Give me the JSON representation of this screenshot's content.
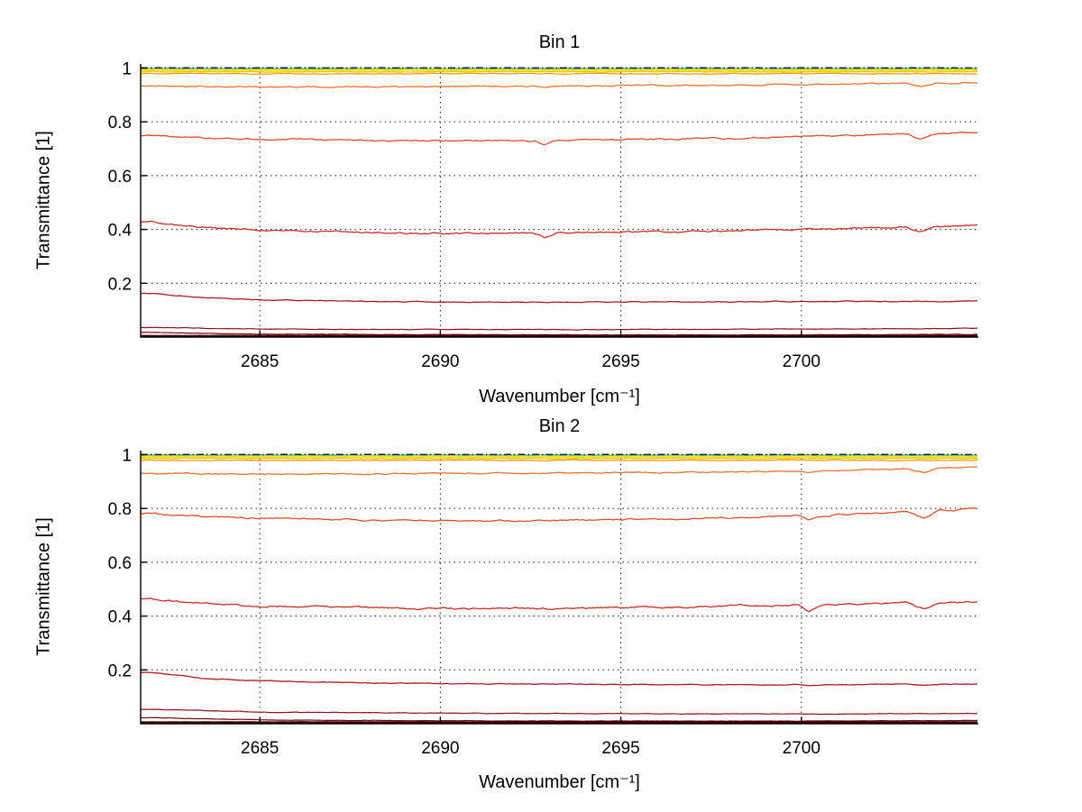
{
  "figure": {
    "background": "#ffffff",
    "text_color": "#000000",
    "grid_color": "#1a1a1a"
  },
  "chart_data": [
    {
      "type": "line",
      "title": "Bin 1",
      "xlabel": "Wavenumber [cm⁻¹]",
      "ylabel": "Transmittance [1]",
      "xlim": [
        2681.7,
        2704.9
      ],
      "ylim": [
        0,
        1.015
      ],
      "xticks": [
        2685,
        2690,
        2695,
        2700
      ],
      "yticks": [
        0.2,
        0.4,
        0.6,
        0.8,
        1
      ],
      "grid": true,
      "legend": "none",
      "series": [
        {
          "name": "line-T0.998-cyan",
          "color": "#4bd9ce",
          "width": 1.3,
          "noise": 0.001,
          "x": [
            2682,
            2705
          ],
          "y": [
            0.9985,
            0.9985
          ]
        },
        {
          "name": "line-T0.996-green",
          "color": "#7ed03e",
          "width": 1.3,
          "noise": 0.001,
          "x": [
            2682,
            2705
          ],
          "y": [
            0.996,
            0.996
          ]
        },
        {
          "name": "line-T0.991-yellow",
          "color": "#f2e814",
          "width": 2.3,
          "noise": 0.0012,
          "x": [
            2682,
            2705
          ],
          "y": [
            0.9915,
            0.9915
          ]
        },
        {
          "name": "line-T0.986-gold",
          "color": "#f5c11a",
          "width": 1.3,
          "noise": 0.0012,
          "x": [
            2682,
            2705
          ],
          "y": [
            0.986,
            0.986
          ]
        },
        {
          "name": "line-T0.979-orange",
          "color": "#f39a22",
          "width": 1.3,
          "noise": 0.0015,
          "x": [
            2682,
            2705
          ],
          "y": [
            0.979,
            0.979
          ]
        },
        {
          "name": "line-T1.000-reference-dashdot",
          "color": "#14147e",
          "width": 1.5,
          "dash": "8 3 1.5 3",
          "noise": 0.0003,
          "x": [
            2682,
            2705
          ],
          "y": [
            1.0005,
            1.0005
          ]
        },
        {
          "name": "line-T0.93",
          "color": "#e8732b",
          "width": 1.3,
          "noise": 0.0022,
          "x": [
            2682,
            2683.5,
            2685,
            2688,
            2690,
            2692.6,
            2692.9,
            2693.2,
            2695,
            2698,
            2700,
            2702.9,
            2703.3,
            2703.7,
            2704.9
          ],
          "y": [
            0.933,
            0.931,
            0.93,
            0.93,
            0.932,
            0.931,
            0.924,
            0.932,
            0.934,
            0.936,
            0.938,
            0.944,
            0.933,
            0.944,
            0.946
          ]
        },
        {
          "name": "line-T0.75",
          "color": "#de4e2b",
          "width": 1.3,
          "noise": 0.0028,
          "x": [
            2682,
            2683.5,
            2685,
            2688,
            2690,
            2692.6,
            2692.9,
            2693.2,
            2695,
            2698,
            2700,
            2702.9,
            2703.3,
            2703.7,
            2704.9
          ],
          "y": [
            0.748,
            0.74,
            0.735,
            0.73,
            0.729,
            0.729,
            0.716,
            0.731,
            0.733,
            0.738,
            0.746,
            0.755,
            0.737,
            0.756,
            0.761
          ]
        },
        {
          "name": "line-T0.40",
          "color": "#cb2c24",
          "width": 1.3,
          "noise": 0.003,
          "x": [
            2682,
            2683.5,
            2685,
            2688,
            2690,
            2692.6,
            2692.9,
            2693.2,
            2695,
            2698,
            2700,
            2702.9,
            2703.3,
            2703.7,
            2704.9
          ],
          "y": [
            0.428,
            0.408,
            0.398,
            0.389,
            0.386,
            0.387,
            0.37,
            0.388,
            0.39,
            0.394,
            0.4,
            0.409,
            0.391,
            0.409,
            0.416
          ]
        },
        {
          "name": "line-T0.14",
          "color": "#af1a1f",
          "width": 1.3,
          "noise": 0.0016,
          "x": [
            2682,
            2683.5,
            2685,
            2688,
            2690,
            2692.6,
            2692.9,
            2693.2,
            2695,
            2698,
            2700,
            2702.9,
            2703.3,
            2703.7,
            2704.9
          ],
          "y": [
            0.162,
            0.146,
            0.138,
            0.132,
            0.13,
            0.13,
            0.128,
            0.13,
            0.13,
            0.131,
            0.132,
            0.133,
            0.131,
            0.133,
            0.135
          ]
        },
        {
          "name": "line-T0.03",
          "color": "#8e1216",
          "width": 1.2,
          "noise": 0.001,
          "x": [
            2682,
            2685,
            2690,
            2695,
            2700,
            2704.9
          ],
          "y": [
            0.036,
            0.03,
            0.028,
            0.028,
            0.03,
            0.032
          ]
        },
        {
          "name": "line-T0.012",
          "color": "#6c080e",
          "width": 1.2,
          "noise": 0.0008,
          "x": [
            2682,
            2685,
            2690,
            2695,
            2700,
            2704.9
          ],
          "y": [
            0.017,
            0.011,
            0.009,
            0.008,
            0.008,
            0.01
          ]
        },
        {
          "name": "line-T0.004-bottom",
          "color": "#460006",
          "width": 2.4,
          "noise": 0.0004,
          "x": [
            2682,
            2705
          ],
          "y": [
            0.004,
            0.004
          ]
        }
      ]
    },
    {
      "type": "line",
      "title": "Bin 2",
      "xlabel": "Wavenumber [cm⁻¹]",
      "ylabel": "Transmittance [1]",
      "xlim": [
        2681.7,
        2704.9
      ],
      "ylim": [
        0,
        1.015
      ],
      "xticks": [
        2685,
        2690,
        2695,
        2700
      ],
      "yticks": [
        0.2,
        0.4,
        0.6,
        0.8,
        1
      ],
      "grid": true,
      "legend": "none",
      "series": [
        {
          "name": "line-T0.998-cyan",
          "color": "#4bd9ce",
          "width": 1.3,
          "noise": 0.001,
          "x": [
            2682,
            2705
          ],
          "y": [
            0.9985,
            0.9985
          ]
        },
        {
          "name": "line-T0.996-green",
          "color": "#7ed03e",
          "width": 1.3,
          "noise": 0.001,
          "x": [
            2682,
            2705
          ],
          "y": [
            0.996,
            0.996
          ]
        },
        {
          "name": "line-T0.991-yellow",
          "color": "#f2e814",
          "width": 2.3,
          "noise": 0.0012,
          "x": [
            2682,
            2705
          ],
          "y": [
            0.9915,
            0.9915
          ]
        },
        {
          "name": "line-T0.986-gold",
          "color": "#f5c11a",
          "width": 1.3,
          "noise": 0.0012,
          "x": [
            2682,
            2705
          ],
          "y": [
            0.986,
            0.986
          ]
        },
        {
          "name": "line-T0.979-orange",
          "color": "#f39a22",
          "width": 1.3,
          "noise": 0.0015,
          "x": [
            2682,
            2705
          ],
          "y": [
            0.979,
            0.979
          ]
        },
        {
          "name": "line-T1.000-reference-dashdot",
          "color": "#14147e",
          "width": 1.5,
          "dash": "8 3 1.5 3",
          "noise": 0.0003,
          "x": [
            2682,
            2705
          ],
          "y": [
            1.0005,
            1.0005
          ]
        },
        {
          "name": "line-T0.93",
          "color": "#e8732b",
          "width": 1.3,
          "noise": 0.0022,
          "x": [
            2682,
            2683.5,
            2685,
            2688,
            2690,
            2692.7,
            2695,
            2698,
            2699.9,
            2700.2,
            2700.6,
            2702.9,
            2703.4,
            2703.8,
            2704.9
          ],
          "y": [
            0.931,
            0.929,
            0.928,
            0.928,
            0.93,
            0.931,
            0.933,
            0.936,
            0.939,
            0.933,
            0.94,
            0.948,
            0.936,
            0.95,
            0.953
          ]
        },
        {
          "name": "line-T0.78",
          "color": "#de4e2b",
          "width": 1.3,
          "noise": 0.003,
          "x": [
            2682,
            2683.5,
            2685,
            2688,
            2690,
            2692.7,
            2695,
            2698,
            2699.9,
            2700.2,
            2700.6,
            2702.9,
            2703.4,
            2703.8,
            2704.9
          ],
          "y": [
            0.782,
            0.77,
            0.764,
            0.757,
            0.754,
            0.755,
            0.759,
            0.766,
            0.773,
            0.757,
            0.774,
            0.79,
            0.764,
            0.792,
            0.799
          ]
        },
        {
          "name": "line-T0.45",
          "color": "#cb2c24",
          "width": 1.3,
          "noise": 0.0032,
          "x": [
            2682,
            2683.5,
            2685,
            2688,
            2690,
            2692.7,
            2695,
            2698,
            2699.9,
            2700.2,
            2700.6,
            2702.9,
            2703.4,
            2703.8,
            2704.9
          ],
          "y": [
            0.464,
            0.445,
            0.437,
            0.43,
            0.427,
            0.428,
            0.431,
            0.437,
            0.441,
            0.414,
            0.442,
            0.45,
            0.426,
            0.451,
            0.453
          ]
        },
        {
          "name": "line-T0.15",
          "color": "#af1a1f",
          "width": 1.3,
          "noise": 0.0016,
          "x": [
            2682,
            2683.5,
            2685,
            2688,
            2690,
            2692.7,
            2695,
            2698,
            2699.9,
            2700.2,
            2700.6,
            2702.9,
            2703.4,
            2703.8,
            2704.9
          ],
          "y": [
            0.19,
            0.168,
            0.159,
            0.152,
            0.149,
            0.147,
            0.146,
            0.145,
            0.145,
            0.141,
            0.145,
            0.147,
            0.143,
            0.147,
            0.149
          ]
        },
        {
          "name": "line-T0.04",
          "color": "#8e1216",
          "width": 1.2,
          "noise": 0.001,
          "x": [
            2682,
            2685,
            2690,
            2695,
            2700,
            2704.9
          ],
          "y": [
            0.053,
            0.043,
            0.039,
            0.037,
            0.036,
            0.038
          ]
        },
        {
          "name": "line-T0.015",
          "color": "#6c080e",
          "width": 1.2,
          "noise": 0.0008,
          "x": [
            2682,
            2685,
            2690,
            2695,
            2700,
            2704.9
          ],
          "y": [
            0.022,
            0.014,
            0.011,
            0.01,
            0.01,
            0.012
          ]
        },
        {
          "name": "line-T0.005-bottom",
          "color": "#460006",
          "width": 2.4,
          "noise": 0.0004,
          "x": [
            2682,
            2705
          ],
          "y": [
            0.005,
            0.005
          ]
        }
      ]
    }
  ]
}
